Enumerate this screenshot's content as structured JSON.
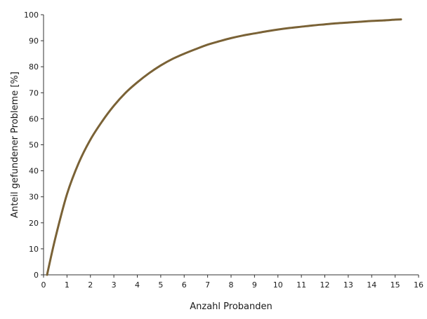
{
  "chart_data": {
    "type": "line",
    "xlabel": "Anzahl Probanden",
    "ylabel": "Anteil gefundener Probleme [%]",
    "xlim": [
      0,
      16
    ],
    "ylim": [
      0,
      100
    ],
    "xticks": [
      0,
      1,
      2,
      3,
      4,
      5,
      6,
      7,
      8,
      9,
      10,
      11,
      12,
      13,
      14,
      15,
      16
    ],
    "yticks": [
      0,
      10,
      20,
      30,
      40,
      50,
      60,
      70,
      80,
      90,
      100
    ],
    "grid": false,
    "series": [
      {
        "color": "#7a6236",
        "x": [
          0.15,
          0.5,
          1,
          1.5,
          2,
          2.5,
          3,
          3.5,
          4,
          4.5,
          5,
          5.5,
          6,
          6.5,
          7,
          7.5,
          8,
          8.5,
          9,
          9.5,
          10,
          10.5,
          11,
          11.5,
          12,
          12.5,
          13,
          13.5,
          14,
          14.5,
          15,
          15.25
        ],
        "values": [
          0,
          14,
          31,
          43,
          52,
          59,
          65,
          70,
          74,
          77.5,
          80.5,
          83,
          85,
          86.8,
          88.5,
          89.8,
          91,
          92,
          92.8,
          93.6,
          94.3,
          94.9,
          95.4,
          95.9,
          96.3,
          96.7,
          97,
          97.3,
          97.6,
          97.8,
          98.1,
          98.2
        ]
      }
    ]
  }
}
